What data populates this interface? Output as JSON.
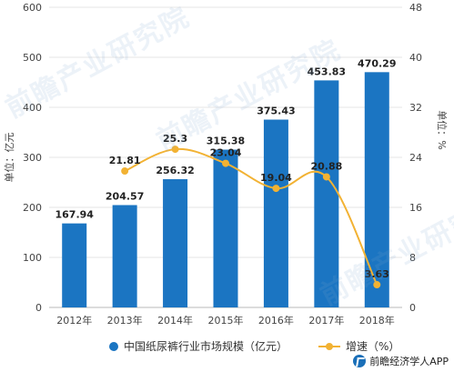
{
  "chart_data": {
    "type": "bar",
    "categories": [
      "2012年",
      "2013年",
      "2014年",
      "2015年",
      "2016年",
      "2017年",
      "2018年"
    ],
    "series": [
      {
        "name": "中国纸尿裤行业市场规模（亿元）",
        "kind": "bar",
        "axis": "left",
        "values": [
          167.94,
          204.57,
          256.32,
          315.38,
          375.43,
          453.83,
          470.29
        ],
        "labels": [
          "167.94",
          "204.57",
          "256.32",
          "315.38",
          "375.43",
          "453.83",
          "470.29"
        ],
        "color": "#1b75c2"
      },
      {
        "name": "增速（%）",
        "kind": "line",
        "axis": "right",
        "values": [
          null,
          21.81,
          25.3,
          23.04,
          19.04,
          20.88,
          3.63
        ],
        "labels": [
          "",
          "21.81",
          "25.3",
          "23.04",
          "19.04",
          "20.88",
          "3.63"
        ],
        "color": "#f2b233"
      }
    ],
    "ylabel": "单位：亿元",
    "ylabel_right": "单位：%",
    "ylim": [
      0,
      600
    ],
    "ylim_right": [
      0,
      48
    ],
    "yticks": [
      0,
      100,
      200,
      300,
      400,
      500,
      600
    ],
    "yticks_right": [
      0,
      8,
      16,
      24,
      32,
      40,
      48
    ],
    "grid": true,
    "legend": "bottom"
  },
  "legend": {
    "bar_label": "中国纸尿裤行业市场规模（亿元）",
    "line_label": "增速（%）"
  },
  "watermark": "前瞻产业研究院",
  "source": "前瞻经济学人APP"
}
